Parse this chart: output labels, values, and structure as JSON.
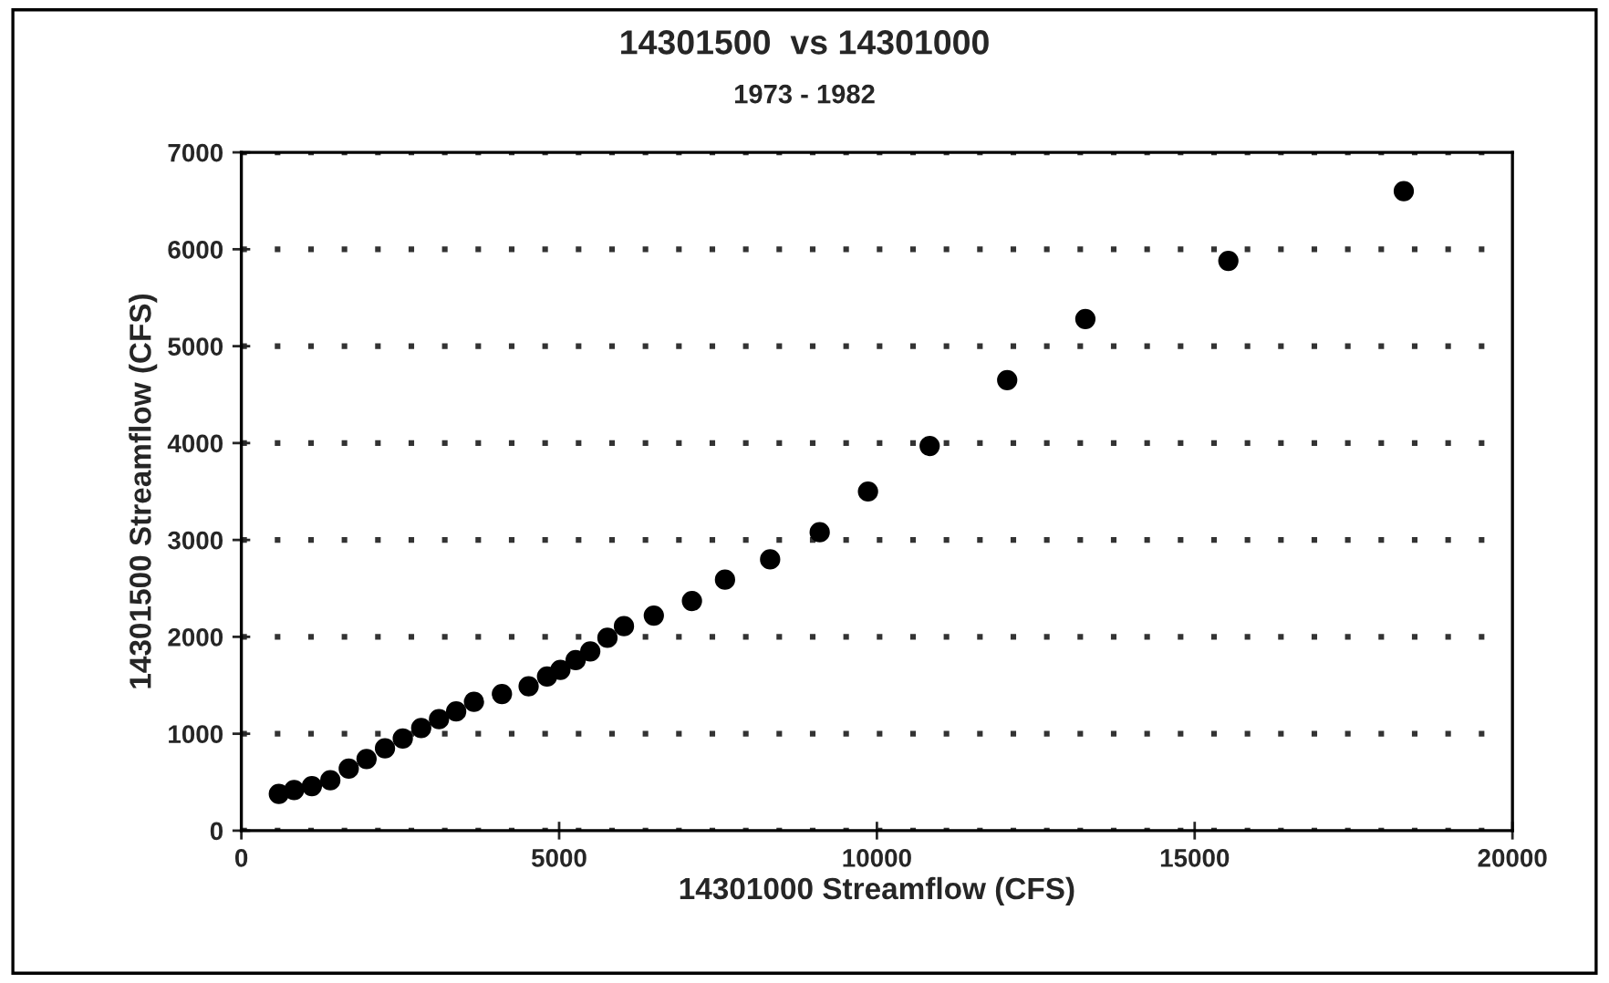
{
  "chart_data": {
    "type": "scatter",
    "title": "14301500  vs 14301000",
    "subtitle": "1973 - 1982",
    "xlabel": "14301000 Streamflow (CFS)",
    "ylabel": "14301500 Streamflow (CFS)",
    "x": [
      590,
      830,
      1110,
      1400,
      1690,
      1970,
      2260,
      2540,
      2830,
      3110,
      3380,
      3660,
      4100,
      4520,
      4810,
      5020,
      5260,
      5490,
      5760,
      6020,
      6490,
      7090,
      7610,
      8320,
      9100,
      9860,
      10830,
      12050,
      13280,
      15530,
      18290
    ],
    "values": [
      380,
      420,
      460,
      520,
      640,
      740,
      850,
      950,
      1060,
      1150,
      1230,
      1330,
      1410,
      1490,
      1590,
      1660,
      1760,
      1850,
      1990,
      2110,
      2220,
      2370,
      2590,
      2800,
      3080,
      3500,
      3970,
      4650,
      5280,
      5880,
      6600
    ],
    "color": "#000000",
    "marker": "circle",
    "xlim": [
      0,
      20000
    ],
    "ylim": [
      0,
      7000
    ],
    "xticks": [
      0,
      5000,
      10000,
      15000,
      20000
    ],
    "yticks": [
      0,
      1000,
      2000,
      3000,
      4000,
      5000,
      6000,
      7000
    ],
    "grid": "y",
    "line_style": "dotted"
  }
}
